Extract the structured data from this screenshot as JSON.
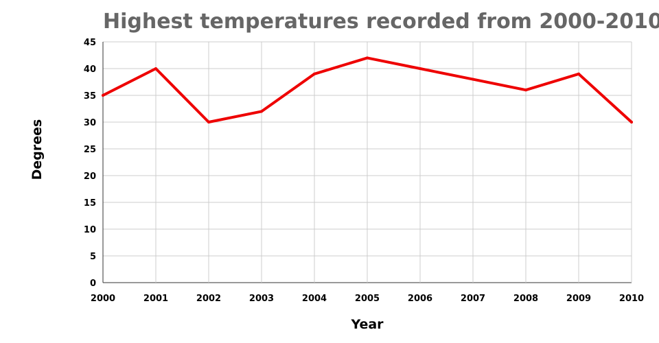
{
  "chart_data": {
    "type": "line",
    "title": "Highest temperatures recorded from 2000-2010",
    "xlabel": "Year",
    "ylabel": "Degrees",
    "x": [
      "2000",
      "2001",
      "2002",
      "2003",
      "2004",
      "2005",
      "2006",
      "2007",
      "2008",
      "2009",
      "2010"
    ],
    "series": [
      {
        "values": [
          35,
          40,
          30,
          32,
          39,
          42,
          40,
          38,
          36,
          39,
          30
        ],
        "color": "#ee0000"
      }
    ],
    "ylim": [
      0,
      45
    ],
    "yticks": [
      0,
      5,
      10,
      15,
      20,
      25,
      30,
      35,
      40,
      45
    ],
    "grid": true,
    "legend": "none"
  }
}
